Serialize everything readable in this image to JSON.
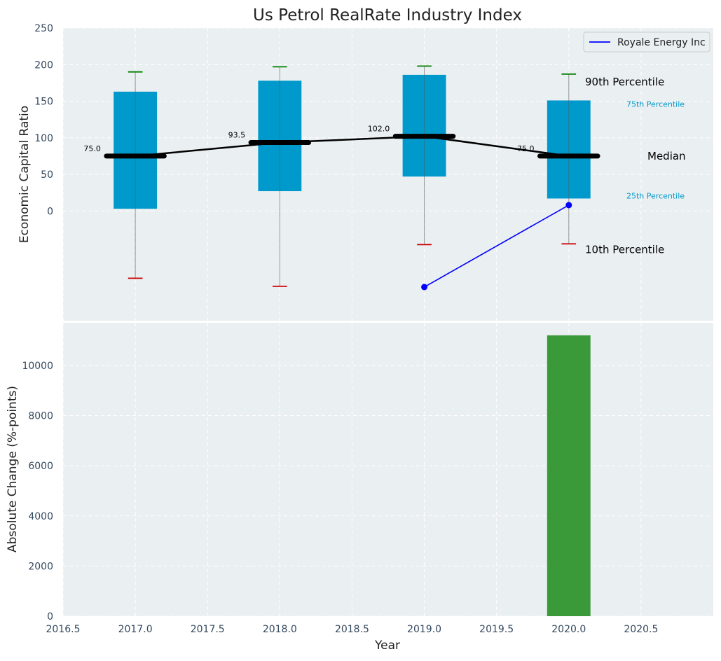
{
  "chart_data": [
    {
      "type": "box",
      "title": "Us Petrol RealRate Industry Index",
      "ylabel": "Economic Capital Ratio",
      "xlim": [
        2016.5,
        2021.0
      ],
      "ylim": [
        -150,
        250
      ],
      "yticks": [
        0,
        50,
        100,
        150,
        200,
        250
      ],
      "grid": true,
      "legend": {
        "position": "top-right",
        "entries": [
          "Royale Energy Inc"
        ]
      },
      "categories": [
        2017,
        2018,
        2019,
        2020
      ],
      "p10": [
        -92,
        -103,
        -46,
        -45
      ],
      "p25": [
        3,
        27,
        47,
        17
      ],
      "median": [
        75,
        93.5,
        102,
        75
      ],
      "p75": [
        163,
        178,
        186,
        151
      ],
      "p90": [
        190,
        197,
        198,
        187
      ],
      "median_labels": [
        "75.0",
        "93.5",
        "102.0",
        "75.0"
      ],
      "series": [
        {
          "name": "Royale Energy Inc",
          "x": [
            2019,
            2020
          ],
          "y": [
            -104,
            8
          ],
          "color": "#0000ff"
        }
      ],
      "annotations": {
        "p90": "90th Percentile",
        "p75": "75th Percentile",
        "median": "Median",
        "p25": "25th Percentile",
        "p10": "10th Percentile"
      },
      "colors": {
        "box": "#0099cc",
        "median": "#000000",
        "p90_cap": "#008000",
        "p10_cap": "#cc0000",
        "axes_bg": "#eaeff1",
        "tick": "#34495e"
      }
    },
    {
      "type": "bar",
      "xlabel": "Year",
      "ylabel": "Absolute Change (%-points)",
      "xlim": [
        2016.5,
        2021.0
      ],
      "ylim": [
        0,
        11700
      ],
      "xticks": [
        "2016.5",
        "2017.0",
        "2017.5",
        "2018.0",
        "2018.5",
        "2019.0",
        "2019.5",
        "2020.0",
        "2020.5"
      ],
      "yticks": [
        0,
        2000,
        4000,
        6000,
        8000,
        10000
      ],
      "grid": true,
      "x": [
        2020
      ],
      "values": [
        11200
      ],
      "colors": {
        "bar": "#3a9a3a"
      }
    }
  ]
}
